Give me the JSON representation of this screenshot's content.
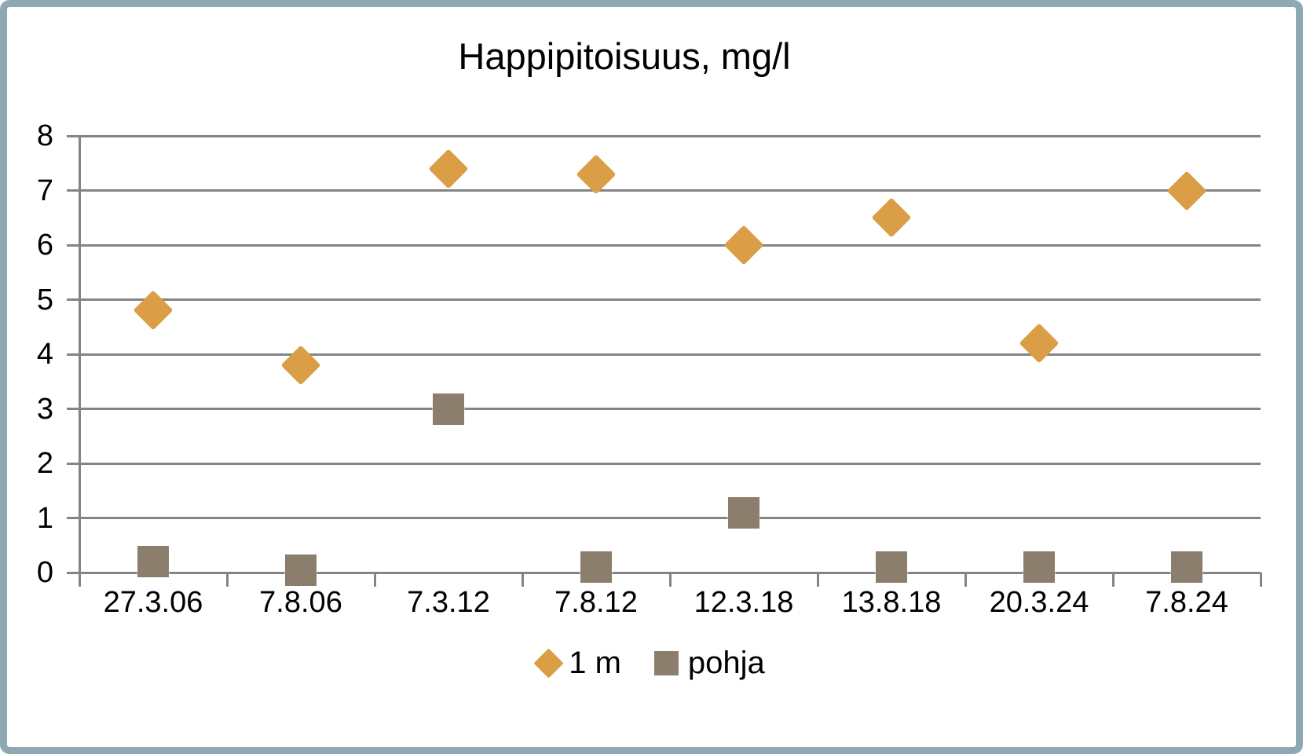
{
  "chart_data": {
    "type": "scatter",
    "title": "Happipitoisuus, mg/l",
    "categories": [
      "27.3.06",
      "7.8.06",
      "7.3.12",
      "7.8.12",
      "12.3.18",
      "13.8.18",
      "20.3.24",
      "7.8.24"
    ],
    "series": [
      {
        "name": "1 m",
        "marker": "diamond",
        "color": "#D99E46",
        "values": [
          4.8,
          3.8,
          7.4,
          7.3,
          6.0,
          6.5,
          4.2,
          7.0
        ]
      },
      {
        "name": "pohja",
        "marker": "square",
        "color": "#8C7E6D",
        "values": [
          0.2,
          0.05,
          3.0,
          0.1,
          1.1,
          0.1,
          0.1,
          0.1
        ]
      }
    ],
    "xlabel": "",
    "ylabel": "",
    "ylim": [
      0,
      8
    ],
    "yticks": [
      0,
      1,
      2,
      3,
      4,
      5,
      6,
      7,
      8
    ],
    "grid": "horizontal",
    "legend_position": "bottom",
    "axis_color": "#848484",
    "frame_color": "#8FA9B3"
  }
}
